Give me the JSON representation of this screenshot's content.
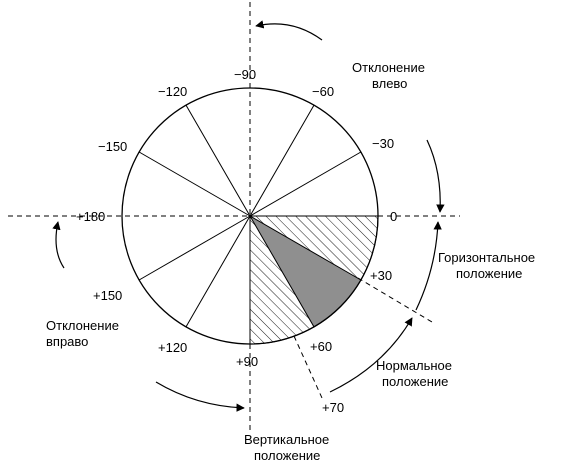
{
  "colors": {
    "stroke": "#000000",
    "shaded_sector": "#8f8f8f",
    "background": "#ffffff"
  },
  "degree_labels": {
    "m90": "−90",
    "m120": "−120",
    "m60": "−60",
    "m150": "−150",
    "m30": "−30",
    "p180": "+180",
    "zero": "0",
    "p30": "+30",
    "p150": "+150",
    "p120": "+120",
    "p90": "+90",
    "p60": "+60",
    "p70": "+70"
  },
  "texts": {
    "left_deviation": [
      "Отклонение",
      "влево"
    ],
    "right_deviation": [
      "Отклонение",
      "вправо"
    ],
    "horizontal_position": [
      "Горизонтальное",
      "положение"
    ],
    "normal_position": [
      "Нормальное",
      "положение"
    ],
    "vertical_position": [
      "Вертикальное",
      "положение"
    ]
  }
}
